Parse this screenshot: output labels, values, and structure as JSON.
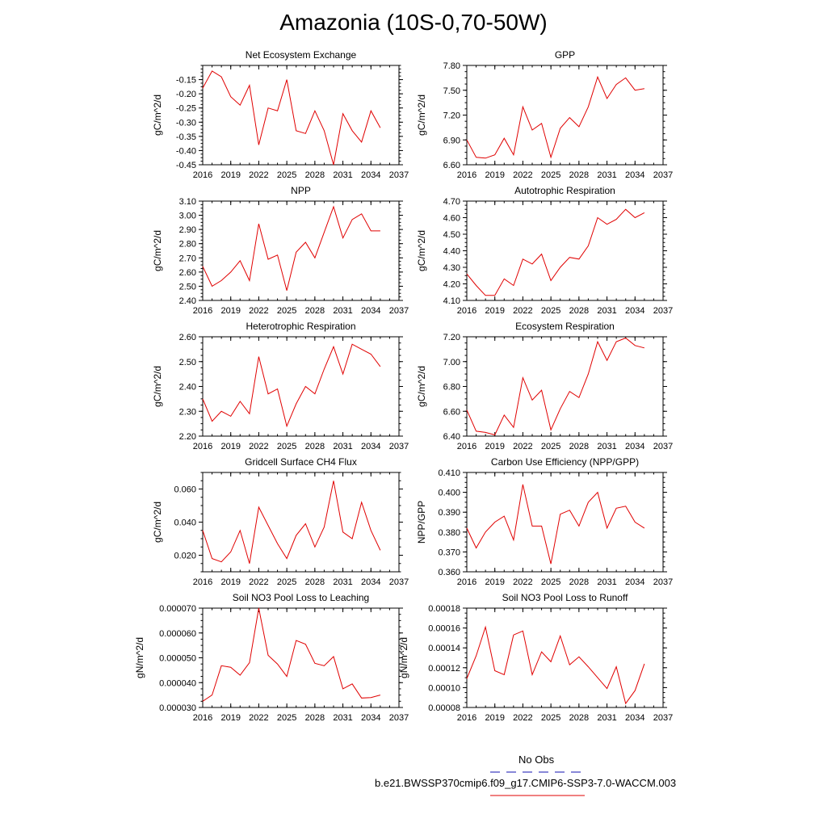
{
  "page": {
    "title": "Amazonia (10S-0,70-50W)"
  },
  "legend": {
    "obs_label": "No Obs",
    "model_label": "b.e21.BWSSP370cmip6.f09_g17.CMIP6-SSP3-7.0-WACCM.003",
    "obs_color": "#4040c0",
    "model_color": "#e00000"
  },
  "chart_data": [
    {
      "type": "line",
      "title": "Net Ecosystem Exchange",
      "ylabel": "gC/m^2/d",
      "xlabel": "",
      "xlim": [
        2016,
        2037
      ],
      "xticks": [
        "2016",
        "2019",
        "2022",
        "2025",
        "2028",
        "2031",
        "2034",
        "2037"
      ],
      "ylim": [
        -0.45,
        -0.1
      ],
      "yticks": [
        "-0.15",
        "-0.20",
        "-0.25",
        "-0.30",
        "-0.35",
        "-0.40",
        "-0.45"
      ],
      "x": [
        2016,
        2017,
        2018,
        2019,
        2020,
        2021,
        2022,
        2023,
        2024,
        2025,
        2026,
        2027,
        2028,
        2029,
        2030,
        2031,
        2032,
        2033,
        2034,
        2035
      ],
      "values": [
        -0.18,
        -0.12,
        -0.14,
        -0.21,
        -0.24,
        -0.17,
        -0.38,
        -0.25,
        -0.26,
        -0.15,
        -0.33,
        -0.34,
        -0.26,
        -0.33,
        -0.45,
        -0.27,
        -0.33,
        -0.37,
        -0.26,
        -0.32
      ]
    },
    {
      "type": "line",
      "title": "GPP",
      "ylabel": "gC/m^2/d",
      "xlabel": "",
      "xlim": [
        2016,
        2037
      ],
      "xticks": [
        "2016",
        "2019",
        "2022",
        "2025",
        "2028",
        "2031",
        "2034",
        "2037"
      ],
      "ylim": [
        6.6,
        7.8
      ],
      "yticks": [
        "6.60",
        "6.90",
        "7.20",
        "7.50",
        "7.80"
      ],
      "x": [
        2016,
        2017,
        2018,
        2019,
        2020,
        2021,
        2022,
        2023,
        2024,
        2025,
        2026,
        2027,
        2028,
        2029,
        2030,
        2031,
        2032,
        2033,
        2034,
        2035
      ],
      "values": [
        6.9,
        6.69,
        6.68,
        6.72,
        6.92,
        6.72,
        7.3,
        7.02,
        7.1,
        6.69,
        7.04,
        7.17,
        7.06,
        7.3,
        7.66,
        7.4,
        7.57,
        7.65,
        7.5,
        7.52
      ]
    },
    {
      "type": "line",
      "title": "NPP",
      "ylabel": "gC/m^2/d",
      "xlabel": "",
      "xlim": [
        2016,
        2037
      ],
      "xticks": [
        "2016",
        "2019",
        "2022",
        "2025",
        "2028",
        "2031",
        "2034",
        "2037"
      ],
      "ylim": [
        2.4,
        3.1
      ],
      "yticks": [
        "2.40",
        "2.50",
        "2.60",
        "2.70",
        "2.80",
        "2.90",
        "3.00",
        "3.10"
      ],
      "x": [
        2016,
        2017,
        2018,
        2019,
        2020,
        2021,
        2022,
        2023,
        2024,
        2025,
        2026,
        2027,
        2028,
        2029,
        2030,
        2031,
        2032,
        2033,
        2034,
        2035
      ],
      "values": [
        2.64,
        2.5,
        2.54,
        2.6,
        2.68,
        2.54,
        2.94,
        2.69,
        2.72,
        2.47,
        2.74,
        2.81,
        2.7,
        2.88,
        3.06,
        2.84,
        2.97,
        3.01,
        2.89,
        2.89
      ]
    },
    {
      "type": "line",
      "title": "Autotrophic Respiration",
      "ylabel": "gC/m^2/d",
      "xlabel": "",
      "xlim": [
        2016,
        2037
      ],
      "xticks": [
        "2016",
        "2019",
        "2022",
        "2025",
        "2028",
        "2031",
        "2034",
        "2037"
      ],
      "ylim": [
        4.1,
        4.7
      ],
      "yticks": [
        "4.10",
        "4.20",
        "4.30",
        "4.40",
        "4.50",
        "4.60",
        "4.70"
      ],
      "x": [
        2016,
        2017,
        2018,
        2019,
        2020,
        2021,
        2022,
        2023,
        2024,
        2025,
        2026,
        2027,
        2028,
        2029,
        2030,
        2031,
        2032,
        2033,
        2034,
        2035
      ],
      "values": [
        4.26,
        4.19,
        4.13,
        4.13,
        4.23,
        4.19,
        4.35,
        4.32,
        4.38,
        4.22,
        4.3,
        4.36,
        4.35,
        4.43,
        4.6,
        4.56,
        4.59,
        4.65,
        4.6,
        4.63
      ]
    },
    {
      "type": "line",
      "title": "Heterotrophic Respiration",
      "ylabel": "gC/m^2/d",
      "xlabel": "",
      "xlim": [
        2016,
        2037
      ],
      "xticks": [
        "2016",
        "2019",
        "2022",
        "2025",
        "2028",
        "2031",
        "2034",
        "2037"
      ],
      "ylim": [
        2.2,
        2.6
      ],
      "yticks": [
        "2.20",
        "2.30",
        "2.40",
        "2.50",
        "2.60"
      ],
      "x": [
        2016,
        2017,
        2018,
        2019,
        2020,
        2021,
        2022,
        2023,
        2024,
        2025,
        2026,
        2027,
        2028,
        2029,
        2030,
        2031,
        2032,
        2033,
        2034,
        2035
      ],
      "values": [
        2.35,
        2.26,
        2.3,
        2.28,
        2.34,
        2.29,
        2.52,
        2.37,
        2.39,
        2.24,
        2.33,
        2.4,
        2.37,
        2.47,
        2.56,
        2.45,
        2.57,
        2.55,
        2.53,
        2.48
      ]
    },
    {
      "type": "line",
      "title": "Ecosystem Respiration",
      "ylabel": "gC/m^2/d",
      "xlabel": "",
      "xlim": [
        2016,
        2037
      ],
      "xticks": [
        "2016",
        "2019",
        "2022",
        "2025",
        "2028",
        "2031",
        "2034",
        "2037"
      ],
      "ylim": [
        6.4,
        7.2
      ],
      "yticks": [
        "6.40",
        "6.60",
        "6.80",
        "7.00",
        "7.20"
      ],
      "x": [
        2016,
        2017,
        2018,
        2019,
        2020,
        2021,
        2022,
        2023,
        2024,
        2025,
        2026,
        2027,
        2028,
        2029,
        2030,
        2031,
        2032,
        2033,
        2034,
        2035
      ],
      "values": [
        6.61,
        6.44,
        6.43,
        6.41,
        6.57,
        6.47,
        6.87,
        6.69,
        6.77,
        6.45,
        6.62,
        6.76,
        6.71,
        6.9,
        7.16,
        7.01,
        7.16,
        7.19,
        7.13,
        7.11
      ]
    },
    {
      "type": "line",
      "title": "Gridcell Surface CH4 Flux",
      "ylabel": "gC/m^2/d",
      "xlabel": "",
      "xlim": [
        2016,
        2037
      ],
      "xticks": [
        "2016",
        "2019",
        "2022",
        "2025",
        "2028",
        "2031",
        "2034",
        "2037"
      ],
      "ylim": [
        0.01,
        0.07
      ],
      "yticks": [
        "0.020",
        "0.040",
        "0.060"
      ],
      "x": [
        2016,
        2017,
        2018,
        2019,
        2020,
        2021,
        2022,
        2023,
        2024,
        2025,
        2026,
        2027,
        2028,
        2029,
        2030,
        2031,
        2032,
        2033,
        2034,
        2035
      ],
      "values": [
        0.035,
        0.018,
        0.016,
        0.022,
        0.035,
        0.015,
        0.049,
        0.038,
        0.027,
        0.018,
        0.032,
        0.039,
        0.025,
        0.037,
        0.065,
        0.034,
        0.03,
        0.052,
        0.035,
        0.023
      ]
    },
    {
      "type": "line",
      "title": "Carbon Use Efficiency (NPP/GPP)",
      "ylabel": "NPP/GPP",
      "xlabel": "",
      "xlim": [
        2016,
        2037
      ],
      "xticks": [
        "2016",
        "2019",
        "2022",
        "2025",
        "2028",
        "2031",
        "2034",
        "2037"
      ],
      "ylim": [
        0.36,
        0.41
      ],
      "yticks": [
        "0.360",
        "0.370",
        "0.380",
        "0.390",
        "0.400",
        "0.410"
      ],
      "x": [
        2016,
        2017,
        2018,
        2019,
        2020,
        2021,
        2022,
        2023,
        2024,
        2025,
        2026,
        2027,
        2028,
        2029,
        2030,
        2031,
        2032,
        2033,
        2034,
        2035
      ],
      "values": [
        0.382,
        0.372,
        0.38,
        0.385,
        0.388,
        0.376,
        0.404,
        0.383,
        0.383,
        0.364,
        0.389,
        0.391,
        0.383,
        0.395,
        0.4,
        0.382,
        0.392,
        0.393,
        0.385,
        0.382
      ]
    },
    {
      "type": "line",
      "title": "Soil NO3 Pool Loss to Leaching",
      "ylabel": "gN/m^2/d",
      "xlabel": "",
      "xlim": [
        2016,
        2037
      ],
      "xticks": [
        "2016",
        "2019",
        "2022",
        "2025",
        "2028",
        "2031",
        "2034",
        "2037"
      ],
      "ylim": [
        3e-05,
        7e-05
      ],
      "yticks": [
        "0.000030",
        "0.000040",
        "0.000050",
        "0.000060",
        "0.000070"
      ],
      "x": [
        2016,
        2017,
        2018,
        2019,
        2020,
        2021,
        2022,
        2023,
        2024,
        2025,
        2026,
        2027,
        2028,
        2029,
        2030,
        2031,
        2032,
        2033,
        2034,
        2035
      ],
      "values": [
        3.25e-05,
        3.5e-05,
        4.68e-05,
        4.62e-05,
        4.3e-05,
        4.8e-05,
        7e-05,
        5.1e-05,
        4.75e-05,
        4.25e-05,
        5.7e-05,
        5.55e-05,
        4.78e-05,
        4.68e-05,
        5.05e-05,
        3.75e-05,
        3.95e-05,
        3.38e-05,
        3.4e-05,
        3.5e-05
      ]
    },
    {
      "type": "line",
      "title": "Soil NO3 Pool Loss to Runoff",
      "ylabel": "gN/m^2/d",
      "xlabel": "",
      "xlim": [
        2016,
        2037
      ],
      "xticks": [
        "2016",
        "2019",
        "2022",
        "2025",
        "2028",
        "2031",
        "2034",
        "2037"
      ],
      "ylim": [
        8e-05,
        0.00018
      ],
      "yticks": [
        "0.00008",
        "0.00010",
        "0.00012",
        "0.00014",
        "0.00016",
        "0.00018"
      ],
      "x": [
        2016,
        2017,
        2018,
        2019,
        2020,
        2021,
        2022,
        2023,
        2024,
        2025,
        2026,
        2027,
        2028,
        2029,
        2030,
        2031,
        2032,
        2033,
        2034,
        2035
      ],
      "values": [
        0.000109,
        0.000132,
        0.000161,
        0.000117,
        0.000113,
        0.000153,
        0.000157,
        0.000113,
        0.000136,
        0.000126,
        0.000152,
        0.000123,
        0.000131,
        0.000121,
        0.00011,
        9.9e-05,
        0.000121,
        8.4e-05,
        9.7e-05,
        0.000124
      ]
    }
  ]
}
